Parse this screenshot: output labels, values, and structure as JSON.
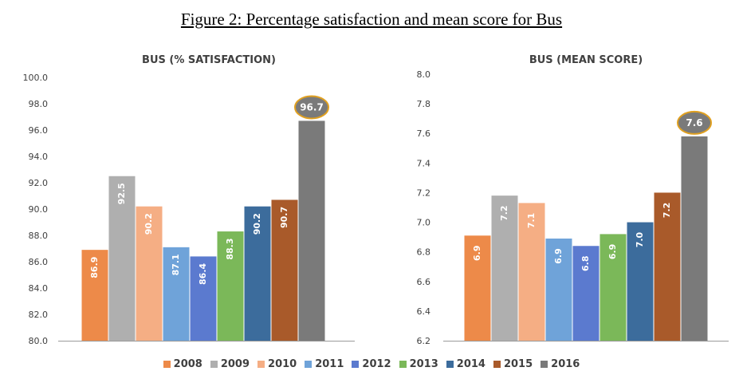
{
  "figure_title": "Figure 2: Percentage satisfaction and mean score for Bus",
  "legend": [
    {
      "label": "2008",
      "color": "#ED8A49"
    },
    {
      "label": "2009",
      "color": "#AFAFAF"
    },
    {
      "label": "2010",
      "color": "#F5AE84"
    },
    {
      "label": "2011",
      "color": "#6FA3D9"
    },
    {
      "label": "2012",
      "color": "#5B7ACF"
    },
    {
      "label": "2013",
      "color": "#7BB859"
    },
    {
      "label": "2014",
      "color": "#3C6C9C"
    },
    {
      "label": "2015",
      "color": "#A95A2A"
    },
    {
      "label": "2016",
      "color": "#7A7A7A"
    }
  ],
  "highlight_color": "#E0A020",
  "chart_data": [
    {
      "type": "bar",
      "title": "BUS (% SATISFACTION)",
      "categories": [
        "2008",
        "2009",
        "2010",
        "2011",
        "2012",
        "2013",
        "2014",
        "2015",
        "2016"
      ],
      "values": [
        86.9,
        92.5,
        90.2,
        87.1,
        86.4,
        88.3,
        90.2,
        90.7,
        96.7
      ],
      "labels": [
        "86.9",
        "92.5",
        "90.2",
        "87.1",
        "86.4",
        "88.3",
        "90.2",
        "90.7",
        "96.7"
      ],
      "ylim": [
        80,
        100
      ],
      "yticks": [
        "80.0",
        "82.0",
        "84.0",
        "86.0",
        "88.0",
        "90.0",
        "92.0",
        "94.0",
        "96.0",
        "98.0",
        "100.0"
      ],
      "highlight_index": 8,
      "xlabel": "",
      "ylabel": ""
    },
    {
      "type": "bar",
      "title": "BUS (MEAN SCORE)",
      "categories": [
        "2008",
        "2009",
        "2010",
        "2011",
        "2012",
        "2013",
        "2014",
        "2015",
        "2016"
      ],
      "values": [
        6.91,
        7.18,
        7.13,
        6.89,
        6.84,
        6.92,
        7.0,
        7.2,
        7.58
      ],
      "labels": [
        "6.9",
        "7.2",
        "7.1",
        "6.9",
        "6.8",
        "6.9",
        "7.0",
        "7.2",
        "7.6"
      ],
      "ylim": [
        6.2,
        8.0
      ],
      "yticks": [
        "6.2",
        "6.4",
        "6.6",
        "6.8",
        "7.0",
        "7.2",
        "7.4",
        "7.6",
        "7.8",
        "8.0"
      ],
      "highlight_index": 8,
      "xlabel": "",
      "ylabel": ""
    }
  ]
}
